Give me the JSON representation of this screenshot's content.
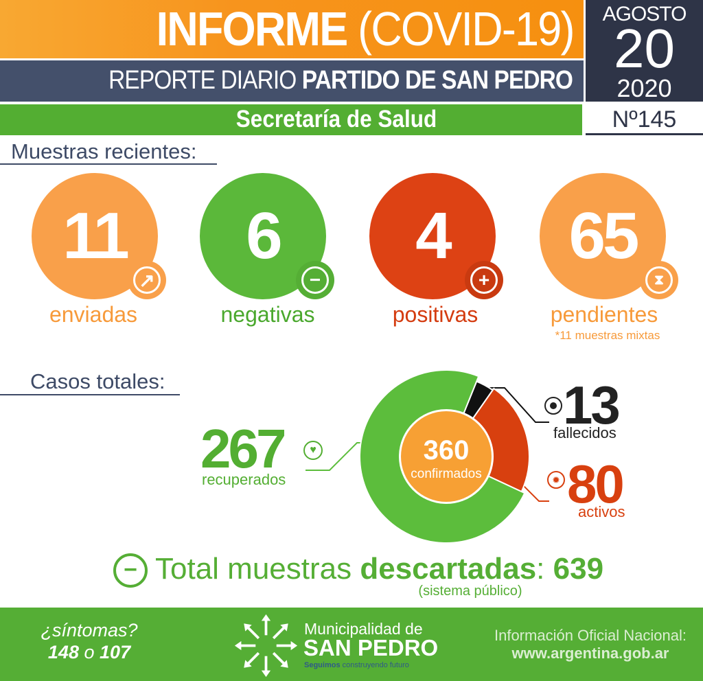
{
  "header": {
    "title_bold": "INFORME",
    "title_light": "(COVID-19)",
    "subtitle_light": "REPORTE DIARIO",
    "subtitle_bold": "PARTIDO DE SAN PEDRO",
    "department": "Secretaría de Salud",
    "month": "AGOSTO",
    "day": "20",
    "year": "2020",
    "report_number": "Nº145"
  },
  "samples": {
    "title": "Muestras recientes:",
    "items": [
      {
        "value": "11",
        "label": "enviadas",
        "icon": "arrow-up-right-icon",
        "color": "#f9a04a"
      },
      {
        "value": "6",
        "label": "negativas",
        "icon": "minus-icon",
        "color": "#5bb83a"
      },
      {
        "value": "4",
        "label": "positivas",
        "icon": "plus-icon",
        "color": "#dd4214"
      },
      {
        "value": "65",
        "asterisk": "*",
        "label": "pendientes",
        "icon": "hourglass-icon",
        "color": "#f9a04a",
        "note": "*11 muestras mixtas"
      }
    ]
  },
  "cases": {
    "title": "Casos totales:",
    "total": "360",
    "total_label": "confirmados",
    "recovered": {
      "value": "267",
      "label": "recuperados"
    },
    "deaths": {
      "value": "13",
      "label": "fallecidos"
    },
    "active": {
      "value": "80",
      "label": "activos"
    }
  },
  "chart_data": {
    "type": "pie",
    "categories": [
      "recuperados",
      "activos",
      "fallecidos"
    ],
    "values": [
      267,
      80,
      13
    ],
    "total": 360,
    "colors": [
      "#5cbd3c",
      "#d8400f",
      "#111111"
    ]
  },
  "discarded": {
    "label_light": "Total muestras",
    "label_bold": "descartadas",
    "colon": ":",
    "value": "639",
    "note": "(sistema público)"
  },
  "footer": {
    "symptoms": "¿síntomas?",
    "phone_a": "148",
    "or": "o",
    "phone_b": "107",
    "muni_line1": "Municipalidad de",
    "muni_line2": "SAN PEDRO",
    "slogan_bold": "Seguimos",
    "slogan": "construyendo futuro",
    "info_label": "Información Oficial Nacional:",
    "info_url": "www.argentina.gob.ar"
  }
}
